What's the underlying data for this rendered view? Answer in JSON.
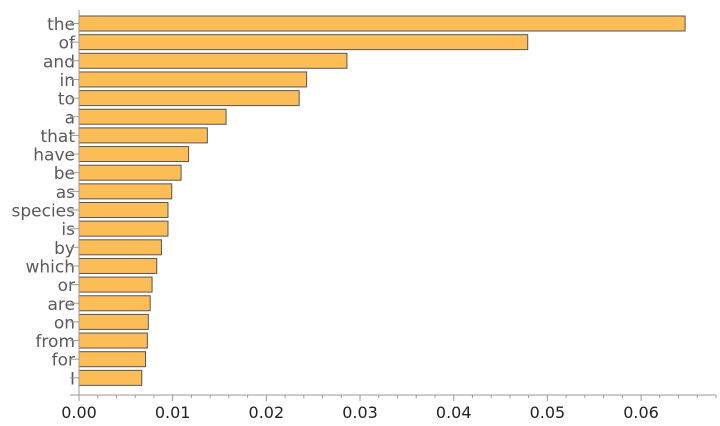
{
  "chart_data": {
    "type": "bar",
    "orientation": "horizontal",
    "categories": [
      "the",
      "of",
      "and",
      "in",
      "to",
      "a",
      "that",
      "have",
      "be",
      "as",
      "species",
      "is",
      "by",
      "which",
      "or",
      "are",
      "on",
      "from",
      "for",
      "I"
    ],
    "values": [
      0.0647,
      0.0479,
      0.0286,
      0.0243,
      0.0235,
      0.0157,
      0.0137,
      0.0117,
      0.0109,
      0.0099,
      0.0095,
      0.0095,
      0.0088,
      0.0083,
      0.0078,
      0.0076,
      0.0074,
      0.0073,
      0.0071,
      0.0067
    ],
    "xticks": [
      "0.00",
      "0.01",
      "0.02",
      "0.03",
      "0.04",
      "0.05",
      "0.06"
    ],
    "xlim": [
      0,
      0.068
    ],
    "grid": false,
    "colors": {
      "bar": "#fdbd56",
      "bar_edge": "#555555",
      "axis": "#999999"
    }
  }
}
